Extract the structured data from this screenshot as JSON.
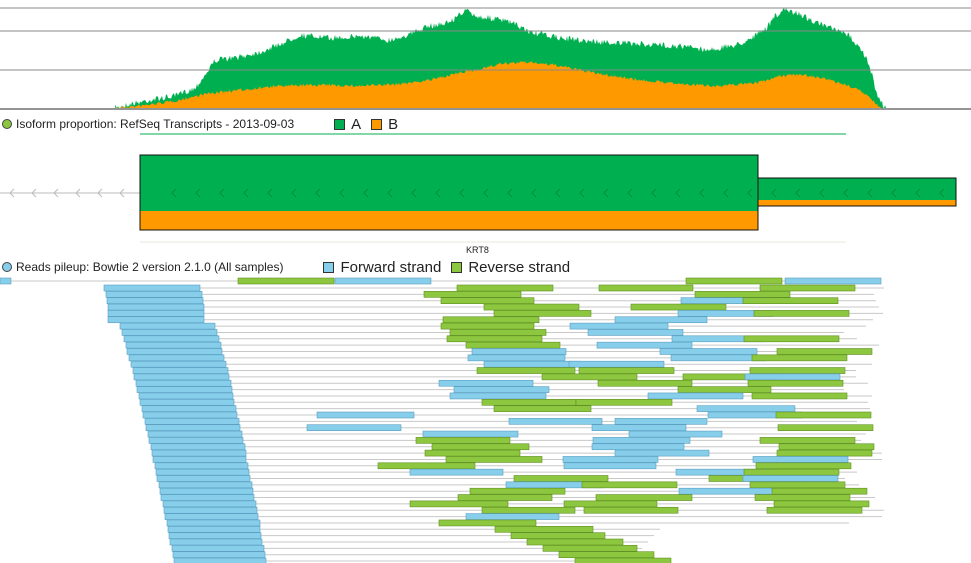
{
  "colors": {
    "isoform_a": "#00b050",
    "isoform_b": "#ff9900",
    "forward": "#87ceeb",
    "reverse": "#8dc63f",
    "forward_stroke": "#5a9ec0",
    "reverse_stroke": "#5f8f23",
    "grid": "#888888",
    "link": "#c8c8c8",
    "isoform_toggle": "#8dc63f",
    "pileup_toggle": "#87ceeb"
  },
  "isoform_track": {
    "title": "Isoform proportion: RefSeq Transcripts - 2013-09-03",
    "legend": [
      {
        "label": "A",
        "color": "#00b050"
      },
      {
        "label": "B",
        "color": "#ff9900"
      }
    ]
  },
  "gene": {
    "name": "KRT8"
  },
  "pileup_track": {
    "title": "Reads pileup: Bowtie 2 version 2.1.0 (All samples)",
    "legend": [
      {
        "label": "Forward strand",
        "color": "#87ceeb"
      },
      {
        "label": "Reverse strand",
        "color": "#8dc63f"
      }
    ]
  }
}
